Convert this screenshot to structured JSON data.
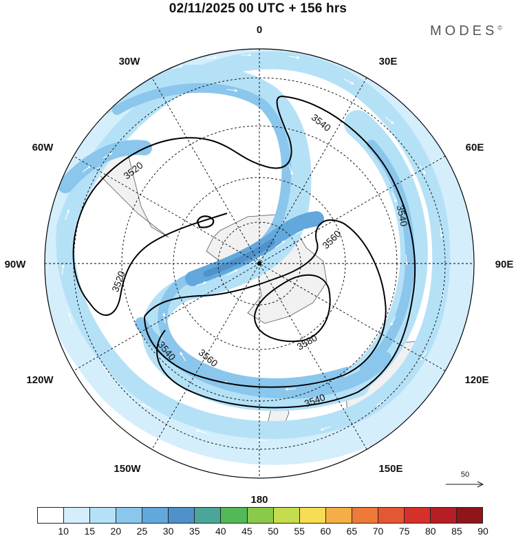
{
  "header": {
    "title": "02/11/2025  00 UTC  + 156 hrs",
    "brand": "MODES",
    "brand_mark": "©"
  },
  "map": {
    "projection": "south-polar-stereographic",
    "longitude_labels": [
      "0",
      "30E",
      "60E",
      "90E",
      "120E",
      "150E",
      "180",
      "150W",
      "120W",
      "90W",
      "60W",
      "30W"
    ],
    "contour_labels": [
      "3520",
      "3520",
      "3540",
      "3540",
      "3540",
      "3540",
      "3560",
      "3560",
      "3580"
    ],
    "colors": {
      "land": "#f1f1f1",
      "coast": "#555555",
      "contour": "#000000",
      "grid": "#000000"
    }
  },
  "reference_vector": {
    "label": "50"
  },
  "colorbar": {
    "labels": [
      "10",
      "15",
      "20",
      "25",
      "30",
      "35",
      "40",
      "45",
      "50",
      "55",
      "60",
      "65",
      "70",
      "75",
      "80",
      "85",
      "90"
    ],
    "colors": [
      "#ffffff",
      "#d4eefb",
      "#b5e1f7",
      "#8bc6ec",
      "#62a8dc",
      "#4f91c8",
      "#4ba69a",
      "#53b858",
      "#8bc94a",
      "#c5dc4f",
      "#f6dd53",
      "#f3ae46",
      "#ed7a37",
      "#e55633",
      "#d6302b",
      "#b51e24",
      "#8f1518"
    ]
  }
}
